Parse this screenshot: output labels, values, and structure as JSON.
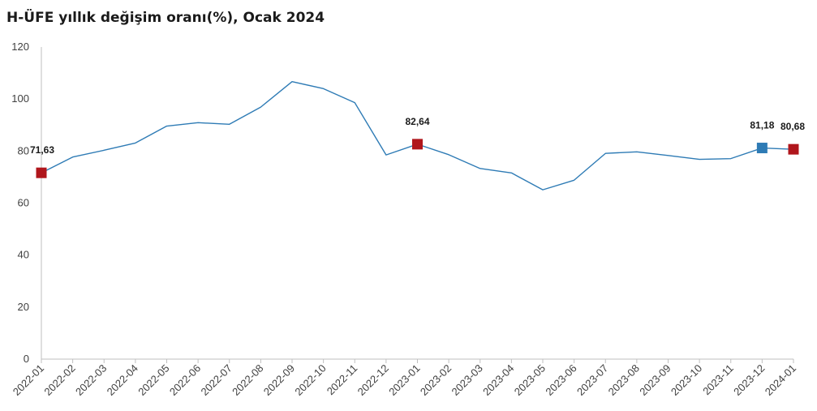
{
  "chart_data": {
    "type": "line",
    "title": "H-ÜFE yıllık değişim oranı(%), Ocak 2024",
    "xlabel": "",
    "ylabel": "",
    "ylim": [
      0,
      120
    ],
    "yticks": [
      0,
      20,
      40,
      60,
      80,
      100,
      120
    ],
    "grid": false,
    "legend": "none",
    "colors": {
      "line": "#2e7bb5",
      "marker_red": "#b0161c",
      "marker_blue": "#2e7bb5",
      "axis": "#bfbfbf"
    },
    "categories": [
      "2022-01",
      "2022-02",
      "2022-03",
      "2022-04",
      "2022-05",
      "2022-06",
      "2022-07",
      "2022-08",
      "2022-09",
      "2022-10",
      "2022-11",
      "2022-12",
      "2023-01",
      "2023-02",
      "2023-03",
      "2023-04",
      "2023-05",
      "2023-06",
      "2023-07",
      "2023-08",
      "2023-09",
      "2023-10",
      "2023-11",
      "2023-12",
      "2024-01"
    ],
    "series": [
      {
        "values": [
          71.63,
          77.7,
          80.3,
          83.1,
          89.6,
          90.9,
          90.3,
          96.9,
          106.7,
          104.0,
          98.6,
          78.5,
          82.64,
          78.6,
          73.3,
          71.6,
          65.1,
          68.8,
          79.1,
          79.7,
          78.3,
          76.8,
          77.1,
          81.18,
          80.68
        ]
      }
    ],
    "highlights": [
      {
        "index": 0,
        "label": "71,63",
        "color": "red"
      },
      {
        "index": 12,
        "label": "82,64",
        "color": "red"
      },
      {
        "index": 23,
        "label": "81,18",
        "color": "blue"
      },
      {
        "index": 24,
        "label": "80,68",
        "color": "red"
      }
    ]
  }
}
